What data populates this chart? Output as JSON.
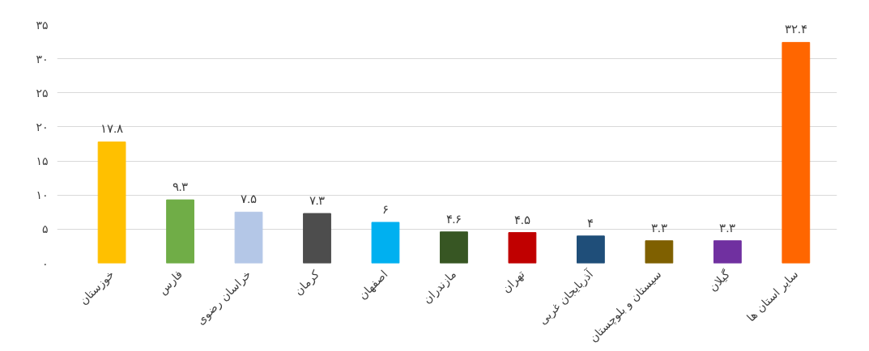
{
  "chart_data": {
    "type": "bar",
    "categories": [
      "خوزستان",
      "فارس",
      "خراسان رضوی",
      "کرمان",
      "اصفهان",
      "مازندران",
      "تهران",
      "آذربایجان غربی",
      "سیستان و بلوچستان",
      "گیلان",
      "سایر استان ها"
    ],
    "values": [
      17.8,
      9.3,
      7.5,
      7.3,
      6,
      4.6,
      4.5,
      4,
      3.3,
      3.3,
      32.4
    ],
    "value_labels": [
      "۱۷.۸",
      "۹.۳",
      "۷.۵",
      "۷.۳",
      "۶",
      "۴.۶",
      "۴.۵",
      "۴",
      "۳.۳",
      "۳.۳",
      "۳۲.۴"
    ],
    "colors": [
      "#ffc000",
      "#70ad47",
      "#b4c7e7",
      "#4d4d4d",
      "#00b0f0",
      "#375623",
      "#c00000",
      "#1f4e79",
      "#7f6000",
      "#7030a0",
      "#ff6600"
    ],
    "ylim": [
      0,
      35
    ],
    "yticks": [
      {
        "value": 0,
        "label": "۰"
      },
      {
        "value": 5,
        "label": "۵"
      },
      {
        "value": 10,
        "label": "۱۰"
      },
      {
        "value": 15,
        "label": "۱۵"
      },
      {
        "value": 20,
        "label": "۲۰"
      },
      {
        "value": 25,
        "label": "۲۵"
      },
      {
        "value": 30,
        "label": "۳۰"
      },
      {
        "value": 35,
        "label": "۳۵"
      }
    ],
    "grid": "y"
  }
}
